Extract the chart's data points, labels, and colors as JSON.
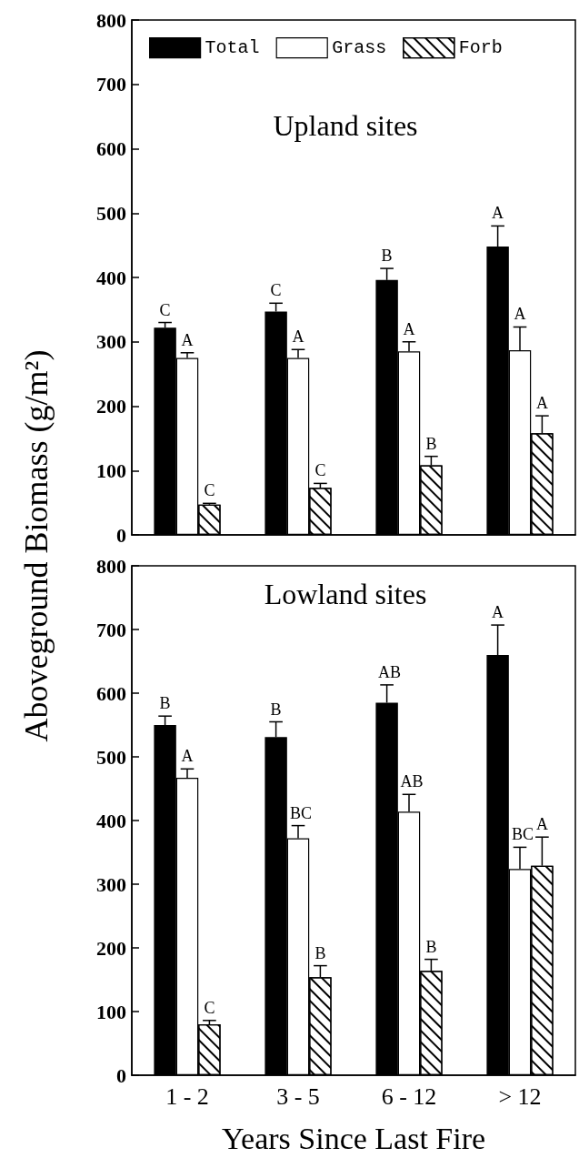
{
  "chart_data": [
    {
      "type": "bar",
      "title": "Upland sites",
      "ylabel": "Aboveground Biomass (g/m²)",
      "categories": [
        null,
        null,
        null,
        null
      ],
      "ylim": [
        0,
        800
      ],
      "yticks": [
        0,
        100,
        200,
        300,
        400,
        500,
        600,
        700,
        800
      ],
      "tick_labels": "y",
      "legend": "top left",
      "series": [
        {
          "name": "Total",
          "color": "#000000",
          "values": [
            322,
            347,
            396,
            448
          ],
          "errors": [
            [
              322,
              330
            ],
            [
              347,
              360
            ],
            [
              396,
              414
            ],
            [
              448,
              480
            ]
          ],
          "value_labels": [
            "C",
            "C",
            "B",
            "A"
          ]
        },
        {
          "name": "Grass",
          "color": "#ffffff",
          "values": [
            275,
            275,
            285,
            287
          ],
          "errors": [
            [
              275,
              283
            ],
            [
              275,
              288
            ],
            [
              285,
              300
            ],
            [
              287,
              323
            ]
          ],
          "value_labels": [
            "A",
            "A",
            "A",
            "A"
          ]
        },
        {
          "name": "Forb",
          "color": "#ffffff",
          "values": [
            47,
            73,
            108,
            158
          ],
          "errors": [
            [
              47,
              49
            ],
            [
              73,
              80
            ],
            [
              108,
              122
            ],
            [
              158,
              185
            ]
          ],
          "value_labels": [
            "C",
            "C",
            "B",
            "A"
          ]
        }
      ]
    },
    {
      "type": "bar",
      "title": "Lowland sites",
      "xlabel": "Years Since Last Fire",
      "categories": [
        "1 - 2",
        "3 - 5",
        "6 - 12",
        "> 12"
      ],
      "ylim": [
        0,
        800
      ],
      "yticks": [
        0,
        100,
        200,
        300,
        400,
        500,
        600,
        700,
        800
      ],
      "series": [
        {
          "color": "#000000",
          "values": [
            550,
            531,
            585,
            660
          ],
          "errors": [
            [
              550,
              564
            ],
            [
              531,
              555
            ],
            [
              585,
              613
            ],
            [
              660,
              707
            ]
          ],
          "value_labels": [
            "B",
            "B",
            "AB",
            "A"
          ]
        },
        {
          "color": "#ffffff",
          "values": [
            467,
            372,
            414,
            324
          ],
          "errors": [
            [
              467,
              481
            ],
            [
              372,
              392
            ],
            [
              414,
              441
            ],
            [
              324,
              358
            ]
          ],
          "value_labels": [
            "A",
            "BC",
            "AB",
            "BC"
          ]
        },
        {
          "color": "#ffffff",
          "values": [
            80,
            154,
            164,
            329
          ],
          "errors": [
            [
              80,
              86
            ],
            [
              154,
              172
            ],
            [
              164,
              182
            ],
            [
              329,
              374
            ]
          ],
          "value_labels": [
            "C",
            "B",
            "B",
            "A"
          ]
        }
      ]
    }
  ]
}
